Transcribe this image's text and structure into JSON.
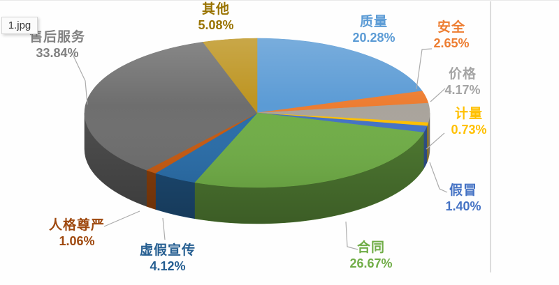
{
  "window": {
    "tab_label": "1.jpg"
  },
  "colors": {
    "background": "#ffffff",
    "divider": "#dcdcdc",
    "leader_line": "#ababab"
  },
  "chart_data": {
    "type": "pie",
    "style": "3d",
    "title": "",
    "legend_position": "none",
    "label_format": "category + percent",
    "slices": [
      {
        "key": "quality",
        "label": "质量",
        "pct": 20.28,
        "pct_label": "20.28%",
        "color": "#5B9BD5",
        "text_color": "#5B9BD5"
      },
      {
        "key": "safety",
        "label": "安全",
        "pct": 2.65,
        "pct_label": "2.65%",
        "color": "#ED7D31",
        "text_color": "#ED7D31"
      },
      {
        "key": "price",
        "label": "价格",
        "pct": 4.17,
        "pct_label": "4.17%",
        "color": "#A9A49C",
        "text_color": "#A5A5A5"
      },
      {
        "key": "measurement",
        "label": "计量",
        "pct": 0.73,
        "pct_label": "0.73%",
        "color": "#FFC000",
        "text_color": "#FFC000"
      },
      {
        "key": "counterfeit",
        "label": "假冒",
        "pct": 1.4,
        "pct_label": "1.40%",
        "color": "#4472C4",
        "text_color": "#4472C4"
      },
      {
        "key": "contract",
        "label": "合同",
        "pct": 26.67,
        "pct_label": "26.67%",
        "color": "#70AD47",
        "text_color": "#70AD47"
      },
      {
        "key": "false-advertising",
        "label": "虚假宣传",
        "pct": 4.12,
        "pct_label": "4.12%",
        "color": "#2A6DA8",
        "text_color": "#255E91"
      },
      {
        "key": "personal-dignity",
        "label": "人格尊严",
        "pct": 1.06,
        "pct_label": "1.06%",
        "color": "#C55A11",
        "text_color": "#9E480E"
      },
      {
        "key": "after-sales-service",
        "label": "售后服务",
        "pct": 33.84,
        "pct_label": "33.84%",
        "color": "#6E6E6E",
        "text_color": "#808080"
      },
      {
        "key": "other",
        "label": "其他",
        "pct": 5.08,
        "pct_label": "5.08%",
        "color": "#BD9420",
        "text_color": "#997300"
      }
    ]
  }
}
